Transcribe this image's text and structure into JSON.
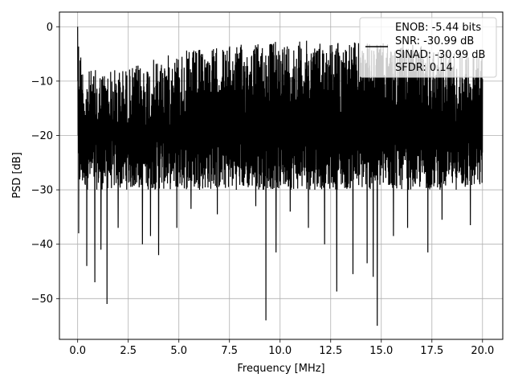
{
  "chart_data": {
    "type": "line",
    "xlabel": "Frequency [MHz]",
    "ylabel": "PSD [dB]",
    "xlim": [
      -0.9,
      21.0
    ],
    "ylim": [
      -57.5,
      2.7
    ],
    "xticks": [
      0.0,
      2.5,
      5.0,
      7.5,
      10.0,
      12.5,
      15.0,
      17.5,
      20.0
    ],
    "xtick_labels": [
      "0.0",
      "2.5",
      "5.0",
      "7.5",
      "10.0",
      "12.5",
      "15.0",
      "17.5",
      "20.0"
    ],
    "yticks": [
      0,
      -10,
      -20,
      -30,
      -40,
      -50
    ],
    "ytick_labels": [
      "0",
      "−10",
      "−20",
      "−30",
      "−40",
      "−50"
    ],
    "grid": true,
    "legend_position": "top-right",
    "legend_entries": [
      "ENOB: -5.44 bits",
      "SNR: -30.99 dB",
      "SINAD: -30.99 dB",
      "SFDR: 0.14"
    ],
    "series": [
      {
        "color": "#000000",
        "freq_range": [
          0.0,
          20.0
        ],
        "peak": [
          0.0,
          0.0
        ],
        "envelope_upper": [
          [
            0.0,
            0.0
          ],
          [
            0.3,
            -8.0
          ],
          [
            2.5,
            -7.5
          ],
          [
            5.0,
            -4.5
          ],
          [
            7.5,
            -3.5
          ],
          [
            10.0,
            -2.5
          ],
          [
            12.5,
            -2.5
          ],
          [
            15.0,
            -3.0
          ],
          [
            17.5,
            -3.5
          ],
          [
            20.0,
            -4.5
          ]
        ],
        "floor_typical": [
          -30,
          -20
        ],
        "dips": [
          [
            0.05,
            -38.0
          ],
          [
            0.45,
            -44.0
          ],
          [
            0.85,
            -47.0
          ],
          [
            1.15,
            -41.0
          ],
          [
            1.45,
            -51.0
          ],
          [
            2.0,
            -37.0
          ],
          [
            3.2,
            -40.0
          ],
          [
            3.6,
            -38.5
          ],
          [
            4.0,
            -42.0
          ],
          [
            4.9,
            -37.0
          ],
          [
            5.6,
            -33.5
          ],
          [
            6.9,
            -34.5
          ],
          [
            8.8,
            -33.0
          ],
          [
            9.3,
            -54.0
          ],
          [
            9.8,
            -41.5
          ],
          [
            10.5,
            -34.0
          ],
          [
            11.4,
            -37.0
          ],
          [
            12.2,
            -40.0
          ],
          [
            12.8,
            -48.7
          ],
          [
            13.6,
            -45.5
          ],
          [
            14.3,
            -43.5
          ],
          [
            14.6,
            -46.0
          ],
          [
            14.8,
            -55.0
          ],
          [
            15.6,
            -38.5
          ],
          [
            16.3,
            -37.0
          ],
          [
            17.3,
            -41.5
          ],
          [
            18.0,
            -35.5
          ],
          [
            19.4,
            -36.5
          ]
        ]
      }
    ]
  }
}
